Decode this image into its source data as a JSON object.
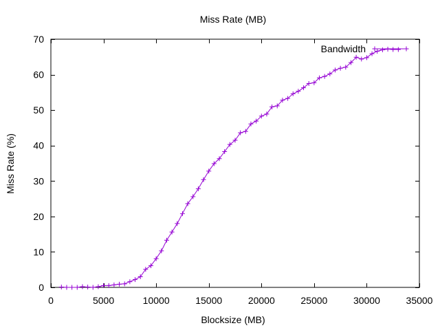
{
  "chart_data": {
    "type": "line",
    "title": "Miss Rate (MB)",
    "xlabel": "Blocksize (MB)",
    "ylabel": "Miss Rate (%)",
    "xlim": [
      0,
      35000
    ],
    "ylim": [
      0,
      70
    ],
    "xticks": [
      0,
      5000,
      10000,
      15000,
      20000,
      25000,
      30000,
      35000
    ],
    "yticks": [
      0,
      10,
      20,
      30,
      40,
      50,
      60,
      70
    ],
    "grid": false,
    "legend": "top-right",
    "series": [
      {
        "name": "Bandwidth",
        "color": "#9400d3",
        "marker": "plus",
        "x": [
          1000,
          1500,
          2000,
          2500,
          3000,
          3500,
          4000,
          4500,
          5000,
          5500,
          6000,
          6500,
          7000,
          7500,
          8000,
          8500,
          9000,
          9500,
          10000,
          10500,
          11000,
          11500,
          12000,
          12500,
          13000,
          13500,
          14000,
          14500,
          15000,
          15500,
          16000,
          16500,
          17000,
          17500,
          18000,
          18500,
          19000,
          19500,
          20000,
          20500,
          21000,
          21500,
          22000,
          22500,
          23000,
          23500,
          24000,
          24500,
          25000,
          25500,
          26000,
          26500,
          27000,
          27500,
          28000,
          28500,
          29000,
          29500,
          30000,
          30500,
          31000,
          31500,
          32000,
          32500,
          33000
        ],
        "y": [
          0.1,
          0.0,
          0.0,
          0.0,
          0.2,
          0.1,
          0.0,
          0.2,
          0.5,
          0.5,
          0.7,
          0.9,
          1.0,
          1.6,
          2.2,
          3.0,
          5.1,
          6.1,
          8.1,
          10.3,
          13.3,
          15.6,
          18.0,
          20.8,
          23.6,
          25.6,
          27.8,
          30.4,
          32.8,
          34.9,
          36.3,
          38.3,
          40.3,
          41.5,
          43.6,
          44.0,
          46.1,
          46.9,
          48.3,
          48.9,
          50.9,
          51.2,
          52.8,
          53.3,
          54.6,
          55.3,
          56.3,
          57.5,
          57.7,
          59.1,
          59.5,
          60.2,
          61.3,
          61.8,
          62.1,
          63.4,
          64.9,
          64.4,
          64.8,
          65.9,
          66.6,
          67.0,
          67.2,
          67.1,
          67.1
        ]
      }
    ]
  }
}
